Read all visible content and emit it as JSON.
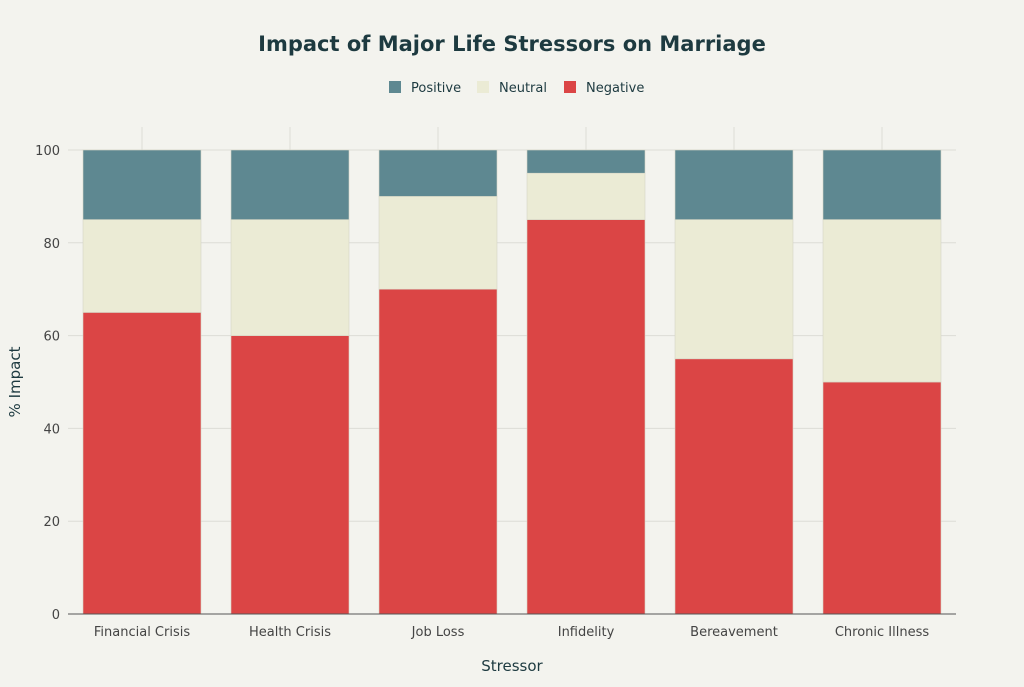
{
  "chart_data": {
    "type": "bar",
    "stacked": true,
    "title": "Impact of Major Life Stressors on Marriage",
    "xlabel": "Stressor",
    "ylabel": "% Impact",
    "ylim": [
      0,
      100
    ],
    "yticks": [
      0,
      20,
      40,
      60,
      80,
      100
    ],
    "grid": true,
    "legend_placement": "top-center",
    "categories": [
      "Financial Crisis",
      "Health Crisis",
      "Job Loss",
      "Infidelity",
      "Bereavement",
      "Chronic Illness"
    ],
    "series": [
      {
        "name": "Negative",
        "color": "#db4545",
        "values": [
          65,
          60,
          70,
          85,
          55,
          50
        ]
      },
      {
        "name": "Neutral",
        "color": "#ebebd5",
        "values": [
          20,
          25,
          20,
          10,
          30,
          35
        ]
      },
      {
        "name": "Positive",
        "color": "#5e8891",
        "values": [
          15,
          15,
          10,
          5,
          15,
          15
        ]
      }
    ],
    "legend_order": [
      "Positive",
      "Neutral",
      "Negative"
    ]
  }
}
